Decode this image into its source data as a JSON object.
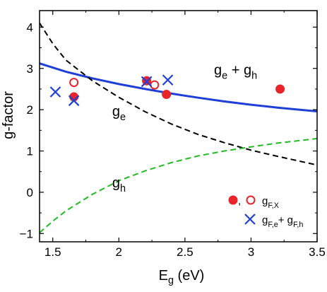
{
  "chart_data": {
    "type": "scatter",
    "xlabel": {
      "main": "E",
      "sub": "g",
      "rest": " (eV)"
    },
    "ylabel": "g-factor",
    "xlim": [
      1.4,
      3.5
    ],
    "ylim": [
      -1.2,
      4.4
    ],
    "xticks": [
      {
        "value": 1.5,
        "label": "1.5"
      },
      {
        "value": 2.0,
        "label": "2"
      },
      {
        "value": 2.5,
        "label": "2.5"
      },
      {
        "value": 3.0,
        "label": "3"
      },
      {
        "value": 3.5,
        "label": "3.5"
      }
    ],
    "yticks": [
      {
        "value": -1,
        "label": "−1"
      },
      {
        "value": 0,
        "label": "0"
      },
      {
        "value": 1,
        "label": "1"
      },
      {
        "value": 2,
        "label": "2"
      },
      {
        "value": 3,
        "label": "3"
      },
      {
        "value": 4,
        "label": "4"
      }
    ],
    "curves": [
      {
        "name": "g_e + g_h",
        "color": "#1f3fd6",
        "style": "solid",
        "x": [
          1.4,
          1.6,
          1.8,
          2.0,
          2.2,
          2.4,
          2.6,
          2.8,
          3.0,
          3.2,
          3.5
        ],
        "y": [
          3.12,
          2.92,
          2.76,
          2.62,
          2.5,
          2.39,
          2.29,
          2.2,
          2.12,
          2.05,
          1.96
        ]
      },
      {
        "name": "g_e",
        "color": "#000000",
        "style": "dashed",
        "x": [
          1.4,
          1.5,
          1.6,
          1.8,
          2.0,
          2.2,
          2.4,
          2.6,
          2.8,
          3.0,
          3.2,
          3.5
        ],
        "y": [
          4.1,
          3.6,
          3.2,
          2.7,
          2.3,
          1.95,
          1.65,
          1.4,
          1.2,
          1.02,
          0.87,
          0.66
        ]
      },
      {
        "name": "g_h",
        "color": "#22bb22",
        "style": "dashed",
        "x": [
          1.4,
          1.5,
          1.6,
          1.8,
          2.0,
          2.2,
          2.4,
          2.6,
          2.8,
          3.0,
          3.2,
          3.5
        ],
        "y": [
          -0.98,
          -0.7,
          -0.45,
          -0.05,
          0.28,
          0.52,
          0.72,
          0.88,
          1.0,
          1.1,
          1.19,
          1.3
        ]
      }
    ],
    "series": [
      {
        "name": "g_F,X filled",
        "marker": "filled-circle",
        "color": "#e8242a",
        "points": [
          {
            "x": 1.66,
            "y": 2.31
          },
          {
            "x": 2.21,
            "y": 2.7
          },
          {
            "x": 2.36,
            "y": 2.37
          },
          {
            "x": 3.22,
            "y": 2.5
          }
        ]
      },
      {
        "name": "g_F,X open",
        "marker": "open-circle",
        "color": "#e8242a",
        "points": [
          {
            "x": 1.66,
            "y": 2.66
          },
          {
            "x": 2.27,
            "y": 2.6
          }
        ]
      },
      {
        "name": "g_F,e + g_F,h",
        "marker": "cross",
        "color": "#1f3fd6",
        "points": [
          {
            "x": 1.52,
            "y": 2.43
          },
          {
            "x": 1.66,
            "y": 2.22
          },
          {
            "x": 2.21,
            "y": 2.68
          },
          {
            "x": 2.37,
            "y": 2.72
          }
        ]
      }
    ],
    "annotations": [
      {
        "main": "g",
        "sub": "e",
        "rest": " + g",
        "sub2": "h",
        "x": 2.72,
        "y": 2.85
      },
      {
        "main": "g",
        "sub": "e",
        "x": 1.95,
        "y": 1.85
      },
      {
        "main": "g",
        "sub": "h",
        "x": 1.95,
        "y": 0.12
      }
    ],
    "legend": {
      "position": "bottom-right",
      "entries": [
        {
          "label_main": "g",
          "label_sub": "F,X",
          "separator": ","
        },
        {
          "label_main": "g",
          "label_sub": "F,e",
          "label_mid": "+ g",
          "label_sub2": "F,h"
        }
      ]
    },
    "grid": false
  }
}
